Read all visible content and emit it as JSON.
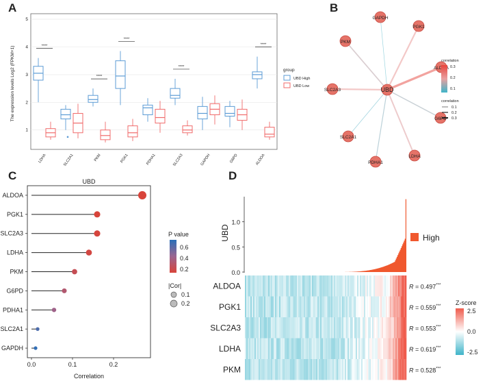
{
  "colors": {
    "high": "#5b9bd5",
    "low": "#f06a6a",
    "node": "#e57368",
    "heat_hi": "#ef5b4c",
    "heat_lo": "#3fb4c9",
    "bar": "#f0582e"
  },
  "chart_data": [
    {
      "panel": "A",
      "type": "box",
      "ylabel": "The expression levels Log2 (FPKM+1)",
      "ylim": [
        0,
        5
      ],
      "yticks": [
        "1",
        "2",
        "3",
        "4",
        "5"
      ],
      "categories": [
        "LDHA",
        "SLC2A1",
        "PKM",
        "PGK1",
        "PDHA1",
        "SLC2A3",
        "GAPDH",
        "G6PD",
        "ALDOA"
      ],
      "legend_title": "group",
      "series": [
        {
          "name": "UBD High",
          "boxes": [
            [
              2.0,
              2.8,
              3.05,
              3.3,
              3.6
            ],
            [
              1.0,
              1.4,
              1.55,
              1.75,
              1.9
            ],
            [
              1.85,
              2.0,
              2.1,
              2.25,
              2.5
            ],
            [
              1.9,
              2.5,
              2.95,
              3.5,
              3.85
            ],
            [
              1.3,
              1.55,
              1.8,
              1.9,
              2.15
            ],
            [
              1.9,
              2.15,
              2.25,
              2.5,
              2.85
            ],
            [
              1.0,
              1.4,
              1.6,
              1.85,
              2.2
            ],
            [
              1.1,
              1.5,
              1.6,
              1.85,
              2.05
            ],
            [
              2.5,
              2.85,
              3.0,
              3.1,
              3.65
            ]
          ]
        },
        {
          "name": "UBD Low",
          "boxes": [
            [
              0.65,
              0.75,
              0.9,
              1.05,
              1.3
            ],
            [
              0.7,
              0.9,
              1.25,
              1.6,
              1.95
            ],
            [
              0.55,
              0.65,
              0.8,
              1.0,
              1.3
            ],
            [
              0.6,
              0.75,
              0.9,
              1.15,
              1.4
            ],
            [
              0.9,
              1.25,
              1.45,
              1.75,
              2.05
            ],
            [
              0.8,
              0.9,
              1.0,
              1.15,
              1.35
            ],
            [
              1.2,
              1.55,
              1.75,
              1.95,
              2.25
            ],
            [
              1.0,
              1.35,
              1.55,
              1.75,
              2.1
            ],
            [
              0.65,
              0.75,
              0.85,
              1.1,
              1.3
            ]
          ]
        }
      ],
      "significance": [
        {
          "category": "LDHA",
          "label": "****"
        },
        {
          "category": "PKM",
          "label": "****"
        },
        {
          "category": "PGK1",
          "label": "****"
        },
        {
          "category": "SLC2A3",
          "label": "****"
        },
        {
          "category": "ALDOA",
          "label": "****"
        }
      ]
    },
    {
      "panel": "B",
      "type": "network",
      "center": "UBD",
      "nodes": [
        {
          "name": "GAPDH",
          "correlation": 0.01
        },
        {
          "name": "PGK1",
          "correlation": 0.16
        },
        {
          "name": "PKM",
          "correlation": 0.11
        },
        {
          "name": "ALDOA",
          "correlation": 0.27
        },
        {
          "name": "SLC2A3",
          "correlation": 0.16
        },
        {
          "name": "G6PD",
          "correlation": 0.08
        },
        {
          "name": "SLC2A1",
          "correlation": 0.02
        },
        {
          "name": "PDHA1",
          "correlation": 0.06
        },
        {
          "name": "LDHA",
          "correlation": 0.14
        }
      ],
      "legend": {
        "color_title": "correlation",
        "color_ticks": [
          "0.3",
          "0.2",
          "0.1"
        ],
        "width_title": "correlation",
        "width_ticks": [
          "0.1",
          "0.2",
          "0.3"
        ]
      }
    },
    {
      "panel": "C",
      "type": "lollipop",
      "title": "UBD",
      "xlabel": "Correlation",
      "xlim": [
        -0.01,
        0.29
      ],
      "xticks": [
        "0.0",
        "0.1",
        "0.2"
      ],
      "items": [
        {
          "gene": "ALDOA",
          "cor": 0.27,
          "p": 0.01
        },
        {
          "gene": "PGK1",
          "cor": 0.16,
          "p": 0.05
        },
        {
          "gene": "SLC2A3",
          "cor": 0.16,
          "p": 0.06
        },
        {
          "gene": "LDHA",
          "cor": 0.14,
          "p": 0.08
        },
        {
          "gene": "PKM",
          "cor": 0.105,
          "p": 0.15
        },
        {
          "gene": "G6PD",
          "cor": 0.08,
          "p": 0.25
        },
        {
          "gene": "PDHA1",
          "cor": 0.055,
          "p": 0.35
        },
        {
          "gene": "SLC2A1",
          "cor": 0.015,
          "p": 0.6
        },
        {
          "gene": "GAPDH",
          "cor": 0.01,
          "p": 0.68
        }
      ],
      "legend": {
        "p_title": "P value",
        "p_ticks": [
          "0.6",
          "0.4",
          "0.2"
        ],
        "size_title": "|Cor|",
        "size_ticks": [
          "0.1",
          "0.2"
        ]
      }
    },
    {
      "panel": "D",
      "type": "heatmap",
      "bar_ylabel": "UBD",
      "bar_yticks": [
        "0.0",
        "0.5",
        "1.0"
      ],
      "bar_ylim": [
        0,
        1.5
      ],
      "legend_high": "High",
      "rows": [
        {
          "gene": "ALDOA",
          "r": "0.497",
          "stars": "***"
        },
        {
          "gene": "PGK1",
          "r": "0.559",
          "stars": "***"
        },
        {
          "gene": "SLC2A3",
          "r": "0.553",
          "stars": "***"
        },
        {
          "gene": "LDHA",
          "r": "0.619",
          "stars": "***"
        },
        {
          "gene": "PKM",
          "r": "0.528",
          "stars": "***"
        }
      ],
      "r_prefix": "R = ",
      "zscore_title": "Z-score",
      "zscore_ticks": [
        "2.5",
        "0.0",
        "-2.5"
      ]
    }
  ],
  "panel_labels": [
    "A",
    "B",
    "C",
    "D"
  ]
}
